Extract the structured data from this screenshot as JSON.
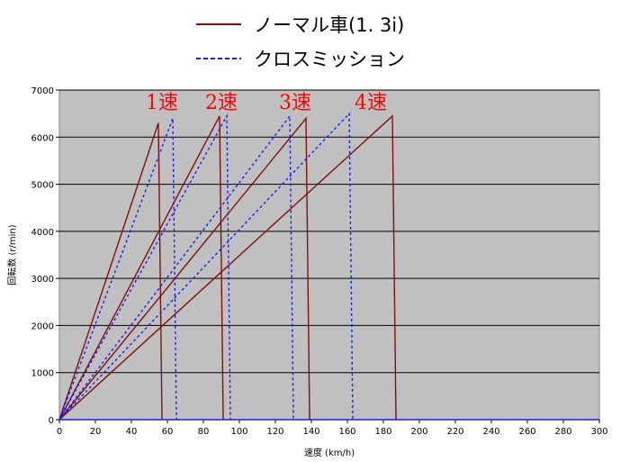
{
  "chart_data": {
    "type": "line",
    "xlabel": "速度 (km/h)",
    "ylabel": "回転数 (r/min)",
    "xlim": [
      0,
      300
    ],
    "ylim": [
      0,
      7000
    ],
    "x_ticks": [
      "0",
      "20",
      "40",
      "60",
      "80",
      "100",
      "120",
      "140",
      "160",
      "180",
      "200",
      "220",
      "240",
      "260",
      "280",
      "300"
    ],
    "y_ticks": [
      "0",
      "1000",
      "2000",
      "3000",
      "4000",
      "5000",
      "6000",
      "7000"
    ],
    "grid": "horizontal",
    "legend": [
      {
        "label": "ノーマル車(1. 3i)",
        "style": "solid",
        "color": "#7f1010"
      },
      {
        "label": "クロスミッション",
        "style": "dashed",
        "color": "#1a1aff"
      }
    ],
    "gear_labels": [
      {
        "text": "1速",
        "x": 57,
        "y": 6600
      },
      {
        "text": "2速",
        "x": 90,
        "y": 6600
      },
      {
        "text": "3速",
        "x": 131,
        "y": 6600
      },
      {
        "text": "4速",
        "x": 173,
        "y": 6600
      }
    ],
    "series": [
      {
        "name": "ノーマル車(1. 3i)",
        "gears": [
          {
            "x": [
              0,
              55,
              57
            ],
            "y": [
              0,
              6300,
              0
            ]
          },
          {
            "x": [
              0,
              89,
              91
            ],
            "y": [
              0,
              6450,
              0
            ]
          },
          {
            "x": [
              0,
              137,
              139
            ],
            "y": [
              0,
              6400,
              0
            ]
          },
          {
            "x": [
              0,
              185,
              187
            ],
            "y": [
              0,
              6450,
              0
            ]
          }
        ]
      },
      {
        "name": "クロスミッション",
        "gears": [
          {
            "x": [
              0,
              63,
              65
            ],
            "y": [
              0,
              6400,
              0
            ]
          },
          {
            "x": [
              0,
              93,
              95
            ],
            "y": [
              0,
              6450,
              0
            ]
          },
          {
            "x": [
              0,
              128,
              130
            ],
            "y": [
              0,
              6450,
              0
            ]
          },
          {
            "x": [
              0,
              161,
              163
            ],
            "y": [
              0,
              6500,
              0
            ]
          }
        ]
      }
    ],
    "colors": {
      "normal": "#7f1010",
      "cross": "#1a1aff",
      "plot_bg": "#c0c0c0"
    }
  }
}
